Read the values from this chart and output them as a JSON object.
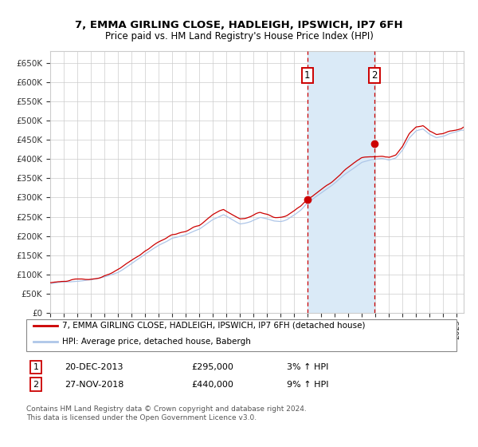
{
  "title": "7, EMMA GIRLING CLOSE, HADLEIGH, IPSWICH, IP7 6FH",
  "subtitle": "Price paid vs. HM Land Registry's House Price Index (HPI)",
  "legend_line1": "7, EMMA GIRLING CLOSE, HADLEIGH, IPSWICH, IP7 6FH (detached house)",
  "legend_line2": "HPI: Average price, detached house, Babergh",
  "annotation1_label": "1",
  "annotation1_date": "20-DEC-2013",
  "annotation1_price": "£295,000",
  "annotation1_hpi": "3% ↑ HPI",
  "annotation1_year": 2013.97,
  "annotation1_value": 295000,
  "annotation2_label": "2",
  "annotation2_date": "27-NOV-2018",
  "annotation2_price": "£440,000",
  "annotation2_hpi": "9% ↑ HPI",
  "annotation2_year": 2018.91,
  "annotation2_value": 440000,
  "hpi_color": "#aec6e8",
  "price_color": "#cc0000",
  "shading_color": "#daeaf7",
  "dashed_line_color": "#cc0000",
  "grid_color": "#cccccc",
  "background_color": "#ffffff",
  "ylim": [
    0,
    680000
  ],
  "xlim_start": 1995.0,
  "xlim_end": 2025.5,
  "footer": "Contains HM Land Registry data © Crown copyright and database right 2024.\nThis data is licensed under the Open Government Licence v3.0."
}
